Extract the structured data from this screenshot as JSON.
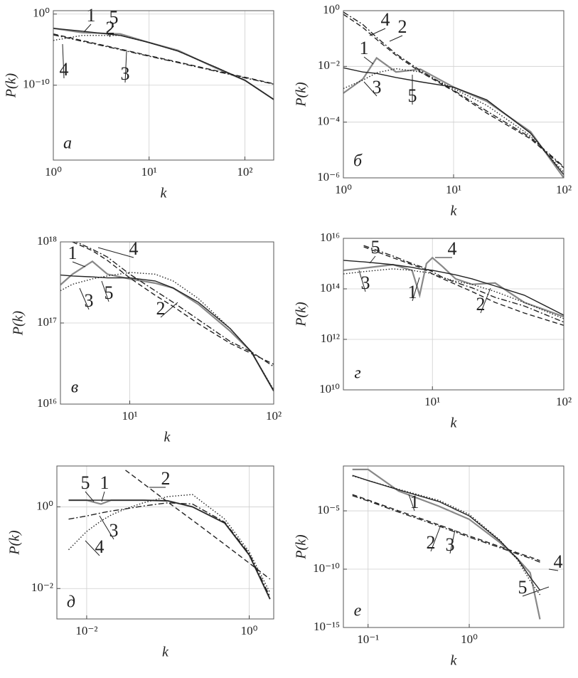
{
  "chart_data": [
    {
      "type": "line",
      "label": "а",
      "xlabel": "k",
      "ylabel": "P(k)",
      "xscale": "log",
      "yscale": "log",
      "grid": true,
      "x": [
        1,
        2,
        5,
        10,
        20,
        50,
        100,
        200
      ],
      "xlim": [
        1,
        200
      ],
      "xticks": [
        {
          "value": 1,
          "label": "10⁰"
        },
        {
          "value": 10,
          "label": "10¹"
        },
        {
          "value": 100,
          "label": "10²"
        }
      ],
      "ylim": [
        3e-21,
        3
      ],
      "yticks": [
        {
          "value": 1e-10,
          "label": "10⁻¹⁰"
        },
        {
          "value": 1,
          "label": "10⁰"
        }
      ],
      "series": [
        {
          "name": "1",
          "color": "#888888",
          "style": "solid",
          "values": [
            0.01,
            0.0025,
            0.0016,
            0.0001,
            7.9e-06,
            2.5e-08,
            5e-10,
            1e-12
          ]
        },
        {
          "name": "2",
          "color": "#222222",
          "style": "dashed",
          "values": [
            0.0016,
            0.00019,
            1.2e-05,
            1.4e-06,
            1.8e-07,
            1.1e-08,
            1.3e-09,
            1.6e-10
          ]
        },
        {
          "name": "3",
          "color": "#222222",
          "style": "dashdot",
          "values": [
            0.0012,
            0.00015,
            1e-05,
            1.2e-06,
            1.5e-07,
            9e-09,
            1.1e-09,
            1.4e-10
          ]
        },
        {
          "name": "4",
          "color": "#222222",
          "style": "dotted",
          "values": [
            0.0002,
            0.001,
            0.001,
            0.0001,
            6.3e-06,
            3.2e-08,
            5e-10,
            1e-12
          ]
        },
        {
          "name": "5",
          "color": "#222222",
          "style": "solid",
          "values": [
            0.01,
            0.004,
            0.001,
            0.0001,
            6.3e-06,
            3.2e-08,
            5e-10,
            1e-12
          ]
        }
      ]
    },
    {
      "type": "line",
      "label": "б",
      "xlabel": "k",
      "ylabel": "P(k)",
      "xscale": "log",
      "yscale": "log",
      "grid": true,
      "x": [
        1,
        1.5,
        2,
        3,
        5,
        10,
        20,
        50,
        100
      ],
      "xlim": [
        1,
        100
      ],
      "xticks": [
        {
          "value": 1,
          "label": "10⁰"
        },
        {
          "value": 10,
          "label": "10¹"
        },
        {
          "value": 100,
          "label": "10²"
        }
      ],
      "ylim": [
        1e-06,
        1
      ],
      "yticks": [
        {
          "value": 1e-06,
          "label": "10⁻⁶"
        },
        {
          "value": 0.0001,
          "label": "10⁻⁴"
        },
        {
          "value": 0.01,
          "label": "10⁻²"
        },
        {
          "value": 1,
          "label": "10⁰"
        }
      ],
      "series": [
        {
          "name": "1",
          "color": "#888888",
          "style": "solid",
          "values": [
            0.0011,
            0.0035,
            0.02,
            0.0063,
            0.0079,
            0.0018,
            0.00056,
            4.5e-05,
            1e-06
          ]
        },
        {
          "name": "2",
          "color": "#222222",
          "style": "dashed",
          "values": [
            0.74,
            0.25,
            0.093,
            0.025,
            0.0063,
            0.0013,
            0.00021,
            2.5e-05,
            2.3e-06
          ]
        },
        {
          "name": "3",
          "color": "#222222",
          "style": "dotted",
          "values": [
            0.0016,
            0.0032,
            0.0059,
            0.0083,
            0.0063,
            0.0016,
            0.0004,
            3.2e-05,
            1.6e-06
          ]
        },
        {
          "name": "4",
          "color": "#222222",
          "style": "dashdot",
          "values": [
            0.89,
            0.32,
            0.11,
            0.028,
            0.0071,
            0.0014,
            0.00025,
            2.8e-05,
            2.5e-06
          ]
        },
        {
          "name": "5",
          "color": "#222222",
          "style": "solid",
          "values": [
            0.0089,
            0.0063,
            0.0056,
            0.004,
            0.0028,
            0.0018,
            0.00063,
            4e-05,
            1.3e-06
          ]
        }
      ]
    },
    {
      "type": "line",
      "label": "в",
      "xlabel": "k",
      "ylabel": "P(k)",
      "xscale": "log",
      "yscale": "log",
      "grid": true,
      "x": [
        3.3,
        4,
        5.5,
        7,
        10,
        15,
        20,
        30,
        50,
        70,
        100
      ],
      "xlim": [
        3.3,
        100
      ],
      "xticks": [
        {
          "value": 10,
          "label": "10¹"
        },
        {
          "value": 100,
          "label": "10²"
        }
      ],
      "ylim": [
        1e+16,
        1e+18
      ],
      "yticks": [
        {
          "value": 1e+16,
          "label": "10¹⁶"
        },
        {
          "value": 1e+17,
          "label": "10¹⁷"
        },
        {
          "value": 1e+18,
          "label": "10¹⁸"
        }
      ],
      "series": [
        {
          "name": "1",
          "color": "#888888",
          "style": "solid",
          "values": [
            2.95e+17,
            4e+17,
            5.75e+17,
            4e+17,
            3.5e+17,
            3.1e+17,
            2.7e+17,
            1.7e+17,
            7.9e+16,
            4.4e+16,
            1.45e+16
          ]
        },
        {
          "name": "2",
          "color": "#222222",
          "style": "dashed",
          "values": [
            null,
            1e+18,
            7.8e+17,
            5.9e+17,
            3.6e+17,
            2.2e+17,
            1.6e+17,
            9.8e+16,
            5.6e+16,
            4.2e+16,
            3.1e+16
          ]
        },
        {
          "name": "3",
          "color": "#222222",
          "style": "dotted",
          "values": [
            2.5e+17,
            3e+17,
            3.5e+17,
            3.8e+17,
            4.2e+17,
            4e+17,
            3.3e+17,
            2e+17,
            8.5e+16,
            4.4e+16,
            1.5e+16
          ]
        },
        {
          "name": "4",
          "color": "#222222",
          "style": "dashdot",
          "values": [
            null,
            1.05e+18,
            8.1e+17,
            6.5e+17,
            4e+17,
            2.5e+17,
            1.8e+17,
            1.1e+17,
            5.9e+16,
            4.4e+16,
            2.9e+16
          ]
        },
        {
          "name": "5",
          "color": "#222222",
          "style": "solid",
          "values": [
            3.9e+17,
            3.8e+17,
            3.7e+17,
            3.6e+17,
            3.6e+17,
            3.3e+17,
            2.7e+17,
            1.8e+17,
            8.5e+16,
            4.4e+16,
            1.45e+16
          ]
        }
      ]
    },
    {
      "type": "line",
      "label": "г",
      "xlabel": "k",
      "ylabel": "P(k)",
      "xscale": "log",
      "yscale": "log",
      "grid": true,
      "x": [
        2.1,
        3,
        5,
        7,
        8,
        9,
        10,
        12,
        15,
        20,
        30,
        50,
        100
      ],
      "xlim": [
        2.1,
        100
      ],
      "xticks": [
        {
          "value": 10,
          "label": "10¹"
        },
        {
          "value": 100,
          "label": "10²"
        }
      ],
      "ylim": [
        10000000000.0,
        1e+16
      ],
      "yticks": [
        {
          "value": 10000000000.0,
          "label": "10¹⁰"
        },
        {
          "value": 1000000000000.0,
          "label": "10¹²"
        },
        {
          "value": 100000000000000.0,
          "label": "10¹⁴"
        },
        {
          "value": 1e+16,
          "label": "10¹⁶"
        }
      ],
      "series": [
        {
          "name": "1",
          "color": "#888888",
          "style": "solid",
          "values": [
            540000000000000.0,
            660000000000000.0,
            910000000000000.0,
            540000000000000.0,
            56000000000000.0,
            1000000000000000.0,
            1700000000000000.0,
            740000000000000.0,
            250000000000000.0,
            150000000000000.0,
            170000000000000.0,
            29000000000000.0,
            7900000000000.0
          ]
        },
        {
          "name": "2",
          "color": "#222222",
          "style": "dashed",
          "values": [
            null,
            4600000000000000.0,
            1700000000000000.0,
            910000000000000.0,
            710000000000000.0,
            540000000000000.0,
            390000000000000.0,
            250000000000000.0,
            150000000000000.0,
            78000000000000.0,
            29000000000000.0,
            11000000000000.0,
            3600000000000.0
          ]
        },
        {
          "name": "3",
          "color": "#222222",
          "style": "dotted",
          "values": [
            390000000000000.0,
            480000000000000.0,
            620000000000000.0,
            540000000000000.0,
            480000000000000.0,
            450000000000000.0,
            390000000000000.0,
            280000000000000.0,
            200000000000000.0,
            150000000000000.0,
            78000000000000.0,
            29000000000000.0,
            6600000000000.0
          ]
        },
        {
          "name": "4",
          "color": "#222222",
          "style": "dashdot",
          "values": [
            null,
            5200000000000000.0,
            2000000000000000.0,
            1000000000000000.0,
            790000000000000.0,
            620000000000000.0,
            480000000000000.0,
            280000000000000.0,
            180000000000000.0,
            110000000000000.0,
            46000000000000.0,
            21000000000000.0,
            4800000000000.0
          ]
        },
        {
          "name": "5",
          "color": "#222222",
          "style": "solid",
          "values": [
            1350000000000000.0,
            1170000000000000.0,
            910000000000000.0,
            710000000000000.0,
            620000000000000.0,
            575000000000000.0,
            540000000000000.0,
            450000000000000.0,
            360000000000000.0,
            250000000000000.0,
            130000000000000.0,
            56000000000000.0,
            9100000000000.0
          ]
        }
      ]
    },
    {
      "type": "line",
      "label": "д",
      "xlabel": "k",
      "ylabel": "P(k)",
      "xscale": "log",
      "yscale": "log",
      "grid": true,
      "x": [
        0.006,
        0.01,
        0.015,
        0.02,
        0.03,
        0.05,
        0.1,
        0.2,
        0.5,
        1,
        1.8
      ],
      "xlim": [
        0.0043,
        2
      ],
      "xticks": [
        {
          "value": 0.01,
          "label": "10⁻²"
        },
        {
          "value": 1,
          "label": "10⁰"
        }
      ],
      "ylim": [
        0.0018,
        10
      ],
      "yticks": [
        {
          "value": 0.01,
          "label": "10⁻²"
        },
        {
          "value": 1,
          "label": "10⁰"
        }
      ],
      "series": [
        {
          "name": "1",
          "color": "#888888",
          "style": "solid",
          "values": [
            1.45,
            1.45,
            1.17,
            1.45,
            1.45,
            1.45,
            1.4,
            1.0,
            0.4,
            0.066,
            0.0055
          ]
        },
        {
          "name": "2",
          "color": "#222222",
          "style": "dashed",
          "values": [
            null,
            null,
            null,
            null,
            7.9,
            3.7,
            1.3,
            0.47,
            0.12,
            0.042,
            0.017
          ]
        },
        {
          "name": "3",
          "color": "#222222",
          "style": "dashdot",
          "values": [
            0.5,
            0.6,
            0.71,
            0.79,
            0.89,
            1.05,
            1.26,
            1.17,
            0.42,
            0.071,
            0.0063
          ]
        },
        {
          "name": "4",
          "color": "#222222",
          "style": "dotted",
          "values": [
            0.089,
            0.25,
            0.45,
            0.63,
            0.89,
            1.26,
            1.78,
            2.0,
            0.5,
            0.079,
            0.0079
          ]
        },
        {
          "name": "5",
          "color": "#222222",
          "style": "solid",
          "values": [
            1.45,
            1.45,
            1.45,
            1.45,
            1.45,
            1.45,
            1.4,
            1.0,
            0.4,
            0.066,
            0.0055
          ]
        }
      ]
    },
    {
      "type": "line",
      "label": "е",
      "xlabel": "k",
      "ylabel": "P(k)",
      "xscale": "log",
      "yscale": "log",
      "grid": true,
      "x": [
        0.07,
        0.1,
        0.2,
        0.5,
        1,
        2,
        3,
        4,
        5
      ],
      "xlim": [
        0.057,
        8.6
      ],
      "xticks": [
        {
          "value": 0.1,
          "label": "10⁻¹"
        },
        {
          "value": 1,
          "label": "10⁰"
        }
      ],
      "ylim": [
        1e-15,
        0.07
      ],
      "yticks": [
        {
          "value": 1e-15,
          "label": "10⁻¹⁵"
        },
        {
          "value": 1e-10,
          "label": "10⁻¹⁰"
        },
        {
          "value": 1e-05,
          "label": "10⁻⁵"
        }
      ],
      "series": [
        {
          "name": "1",
          "color": "#888888",
          "style": "solid",
          "values": [
            0.035,
            0.035,
            0.0005,
            2.5e-05,
            1.9e-06,
            2e-08,
            7.9e-10,
            5e-11,
            5e-15
          ]
        },
        {
          "name": "2",
          "color": "#222222",
          "style": "dashed",
          "values": [
            0.00025,
            8.5e-05,
            1e-05,
            6.3e-07,
            7.1e-08,
            8.9e-09,
            2.5e-09,
            1.1e-09,
            5.4e-10
          ]
        },
        {
          "name": "3",
          "color": "#222222",
          "style": "dashdot",
          "values": [
            0.0002,
            7.1e-05,
            7.9e-06,
            5e-07,
            5.6e-08,
            7.1e-09,
            2e-09,
            8.7e-10,
            4e-10
          ]
        },
        {
          "name": "4",
          "color": "#222222",
          "style": "dotted",
          "values": [
            0.01,
            0.004,
            0.00071,
            7.9e-05,
            5e-06,
            3.2e-08,
            6.3e-10,
            1e-11,
            6.3e-13
          ]
        },
        {
          "name": "5",
          "color": "#222222",
          "style": "solid",
          "values": [
            0.011,
            0.004,
            0.00063,
            6.3e-05,
            3.7e-06,
            2.8e-08,
            7.9e-10,
            2e-11,
            1.6e-12
          ]
        }
      ]
    }
  ]
}
